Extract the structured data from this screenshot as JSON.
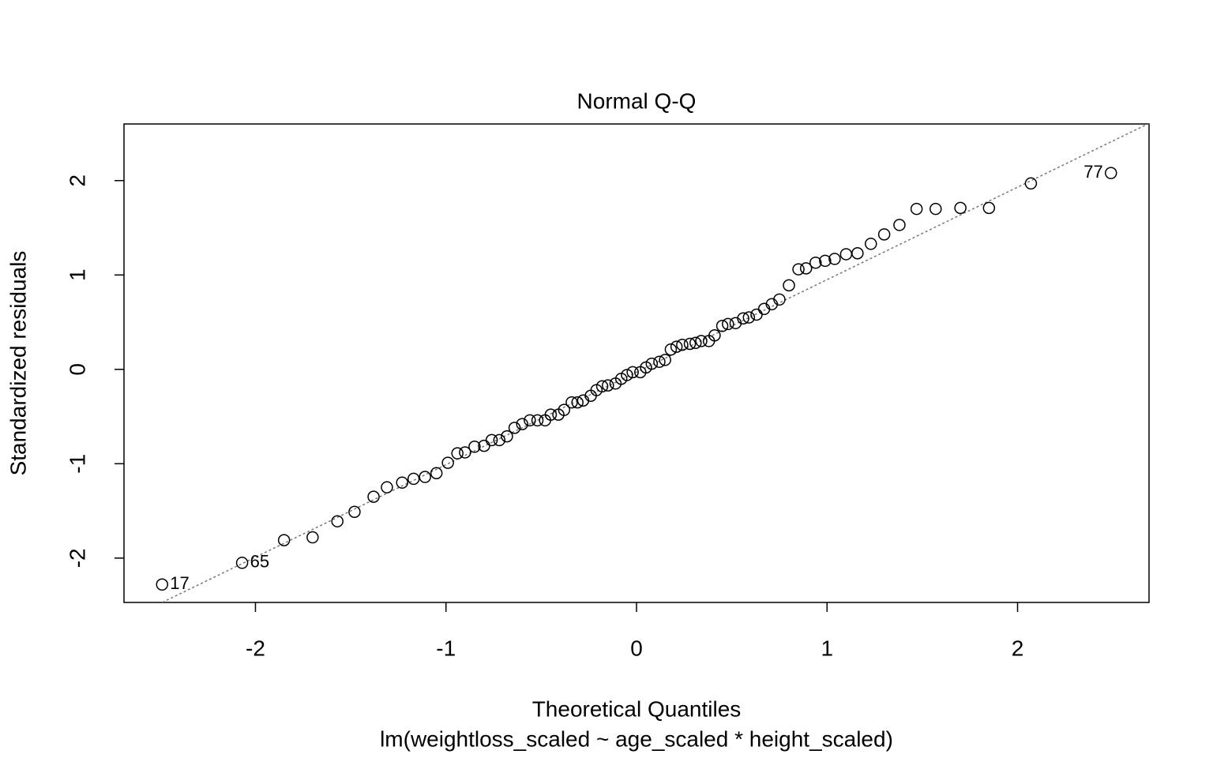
{
  "chart_data": {
    "type": "scatter",
    "title": "Normal Q-Q",
    "x_label": "Theoretical Quantiles",
    "subtitle": "lm(weightloss_scaled ~ age_scaled * height_scaled)",
    "y_label": "Standardized residuals",
    "x": [
      -2.49,
      -2.07,
      -1.85,
      -1.7,
      -1.57,
      -1.48,
      -1.38,
      -1.31,
      -1.23,
      -1.17,
      -1.11,
      -1.05,
      -0.99,
      -0.94,
      -0.9,
      -0.85,
      -0.8,
      -0.76,
      -0.72,
      -0.68,
      -0.64,
      -0.6,
      -0.56,
      -0.52,
      -0.48,
      -0.45,
      -0.41,
      -0.38,
      -0.34,
      -0.31,
      -0.28,
      -0.24,
      -0.21,
      -0.18,
      -0.15,
      -0.11,
      -0.08,
      -0.05,
      -0.02,
      0.02,
      0.05,
      0.08,
      0.12,
      0.15,
      0.18,
      0.21,
      0.24,
      0.28,
      0.31,
      0.34,
      0.38,
      0.41,
      0.45,
      0.48,
      0.52,
      0.56,
      0.59,
      0.63,
      0.67,
      0.71,
      0.75,
      0.8,
      0.85,
      0.89,
      0.94,
      0.99,
      1.04,
      1.1,
      1.16,
      1.23,
      1.3,
      1.38,
      1.47,
      1.57,
      1.7,
      1.85,
      2.07,
      2.49
    ],
    "values": [
      -2.28,
      -2.05,
      -1.81,
      -1.78,
      -1.61,
      -1.51,
      -1.35,
      -1.25,
      -1.2,
      -1.16,
      -1.14,
      -1.1,
      -0.99,
      -0.89,
      -0.88,
      -0.82,
      -0.81,
      -0.75,
      -0.75,
      -0.71,
      -0.62,
      -0.58,
      -0.54,
      -0.54,
      -0.54,
      -0.48,
      -0.48,
      -0.43,
      -0.35,
      -0.35,
      -0.33,
      -0.28,
      -0.22,
      -0.18,
      -0.17,
      -0.15,
      -0.1,
      -0.06,
      -0.03,
      -0.03,
      0.02,
      0.06,
      0.08,
      0.1,
      0.21,
      0.24,
      0.26,
      0.27,
      0.28,
      0.3,
      0.3,
      0.36,
      0.46,
      0.48,
      0.49,
      0.54,
      0.55,
      0.58,
      0.64,
      0.69,
      0.74,
      0.89,
      1.06,
      1.07,
      1.13,
      1.15,
      1.17,
      1.22,
      1.23,
      1.33,
      1.43,
      1.53,
      1.7,
      1.7,
      1.71,
      1.71,
      1.97,
      2.08
    ],
    "point_labels": [
      "17",
      "65",
      null,
      null,
      null,
      null,
      null,
      null,
      null,
      null,
      null,
      null,
      null,
      null,
      null,
      null,
      null,
      null,
      null,
      null,
      null,
      null,
      null,
      null,
      null,
      null,
      null,
      null,
      null,
      null,
      null,
      null,
      null,
      null,
      null,
      null,
      null,
      null,
      null,
      null,
      null,
      null,
      null,
      null,
      null,
      null,
      null,
      null,
      null,
      null,
      null,
      null,
      null,
      null,
      null,
      null,
      null,
      null,
      null,
      null,
      null,
      null,
      null,
      null,
      null,
      null,
      null,
      null,
      null,
      null,
      null,
      null,
      null,
      null,
      null,
      null,
      null,
      "77"
    ],
    "color": "#000000",
    "reference_line": {
      "slope": 0.98,
      "intercept": -0.03,
      "color": "#777777"
    },
    "xlim": [
      -2.69,
      2.69
    ],
    "xticks": [
      -2,
      -1,
      0,
      1,
      2
    ],
    "ylim": [
      -2.47,
      2.6
    ],
    "yticks": [
      -2,
      -1,
      0,
      1,
      2
    ]
  }
}
